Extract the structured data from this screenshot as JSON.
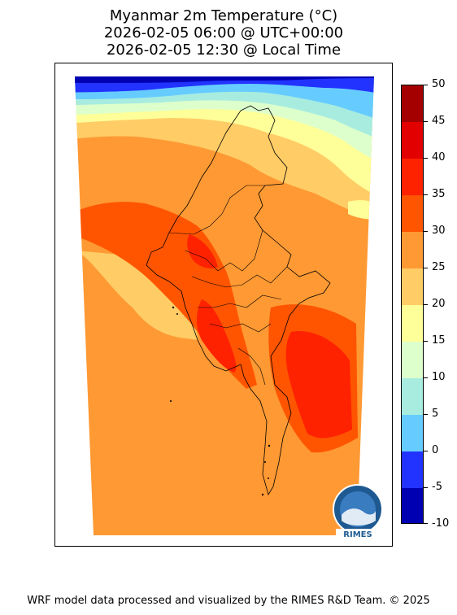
{
  "title": {
    "line1": "Myanmar 2m Temperature (°C)",
    "line2": "2026-02-05 06:00 @ UTC+00:00",
    "line3": "2026-02-05 12:30 @ Local Time"
  },
  "colorbar": {
    "ticks": [
      "50",
      "45",
      "40",
      "35",
      "30",
      "25",
      "20",
      "15",
      "10",
      "5",
      "0",
      "-5",
      "-10"
    ],
    "colors": [
      "#a50000",
      "#e30000",
      "#ff2200",
      "#ff5500",
      "#ff9933",
      "#ffcc66",
      "#ffff99",
      "#ddffcc",
      "#a8ece0",
      "#66ccff",
      "#2233ff",
      "#0000b2"
    ]
  },
  "logo": {
    "text": "RIMES"
  },
  "footer": "WRF model data processed and visualized by the RIMES R&D Team. © 2025"
}
